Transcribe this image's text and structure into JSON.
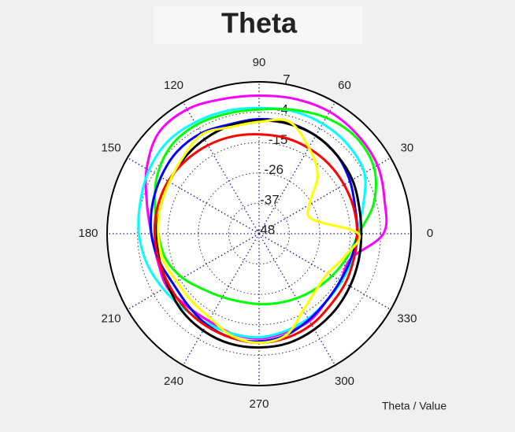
{
  "chart_data": {
    "type": "polar",
    "title": "Theta",
    "axis_label": "Theta / Value",
    "theta": [
      0,
      15,
      30,
      45,
      60,
      75,
      90,
      105,
      120,
      135,
      150,
      165,
      180,
      195,
      210,
      225,
      240,
      255,
      270,
      285,
      300,
      315,
      330,
      345
    ],
    "thetaticks": [
      0,
      30,
      60,
      90,
      120,
      150,
      180,
      210,
      240,
      270,
      300,
      330
    ],
    "rlim": [
      -48,
      7
    ],
    "rticks": [
      -48,
      -37,
      -26,
      -15,
      -4,
      7
    ],
    "grid": true,
    "series": [
      {
        "color": "#ff00ff",
        "values": [
          -3,
          -1,
          1.5,
          2.5,
          3,
          2.5,
          2,
          2.5,
          4,
          3.5,
          -1,
          -6,
          -9,
          -10,
          -9.5,
          -11,
          -11.5,
          -10.5,
          -10,
          -11,
          -11.5,
          -13.5,
          -14,
          -13.5
        ]
      },
      {
        "color": "#00ffff",
        "values": [
          -12.5,
          -9,
          -4,
          -2.5,
          -2,
          -2,
          -2.5,
          -2,
          -1.5,
          -1,
          -2,
          -3.5,
          -4.5,
          -6,
          -8,
          -9.5,
          -10.5,
          -10.5,
          -10.5,
          -11.5,
          -12.5,
          -13.5,
          -13.5,
          -13
        ]
      },
      {
        "color": "#00ff00",
        "values": [
          -12,
          -5,
          0,
          1.5,
          0.5,
          -1.5,
          -3,
          -3,
          -2.5,
          -3,
          -5.5,
          -9,
          -11.5,
          -13,
          -16,
          -19.5,
          -21.5,
          -22.5,
          -22.5,
          -22,
          -21,
          -19.5,
          -17.5,
          -15
        ]
      },
      {
        "color": "#0000ff",
        "values": [
          -12.5,
          -12,
          -10,
          -8,
          -7,
          -6.5,
          -6.5,
          -7,
          -6,
          -6,
          -7,
          -8,
          -9,
          -10.5,
          -12,
          -11.5,
          -10,
          -9,
          -9,
          -10,
          -12,
          -13.5,
          -14,
          -13.5
        ]
      },
      {
        "color": "#000000",
        "values": [
          -11,
          -10.5,
          -9,
          -8,
          -7,
          -6.8,
          -7,
          -7.5,
          -8.5,
          -9.5,
          -10.5,
          -11,
          -11,
          -10.7,
          -10,
          -8.5,
          -7.5,
          -6.8,
          -6.8,
          -7,
          -8,
          -9,
          -10,
          -10.7
        ]
      },
      {
        "color": "#ff0000",
        "values": [
          -12.5,
          -12.5,
          -12.5,
          -12.3,
          -12.2,
          -12,
          -12,
          -11.5,
          -11,
          -10.5,
          -10,
          -10,
          -10.2,
          -10.5,
          -10.5,
          -10,
          -9.5,
          -9,
          -8.5,
          -9,
          -10,
          -11.5,
          -12,
          -12.5
        ]
      },
      {
        "color": "#ffff00",
        "values": [
          -12,
          -28,
          -27,
          -18,
          -12,
          -6,
          -7.5,
          -8,
          -6.5,
          -9,
          -10.5,
          -11,
          -11.5,
          -12,
          -13.5,
          -13.5,
          -12.7,
          -9.7,
          -8.5,
          -10,
          -16,
          -19,
          -19.3,
          -16
        ]
      }
    ]
  }
}
